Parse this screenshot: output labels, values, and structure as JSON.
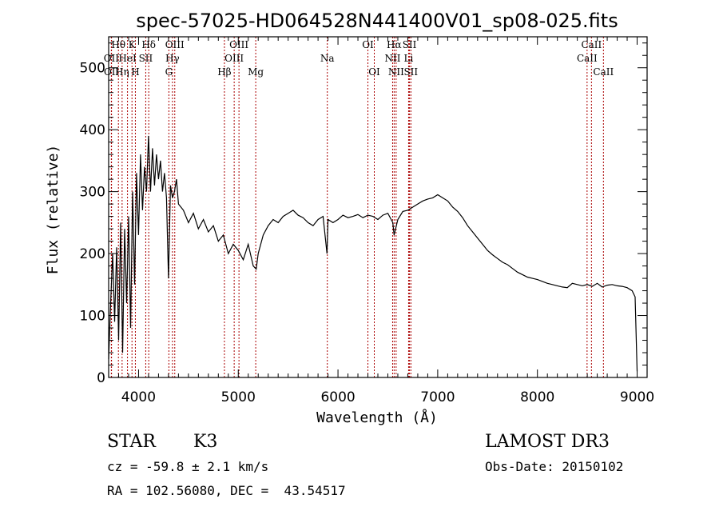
{
  "chart_data": {
    "type": "line",
    "title": "spec-57025-HD064528N441400V01_sp08-025.fits",
    "xlabel": "Wavelength (Å)",
    "ylabel": "Flux (relative)",
    "xlim": [
      3700,
      9100
    ],
    "ylim": [
      0,
      550
    ],
    "xticks": [
      "4000",
      "5000",
      "6000",
      "7000",
      "8000",
      "9000"
    ],
    "yticks": [
      "0",
      "100",
      "200",
      "300",
      "400",
      "500"
    ],
    "spectrum": {
      "x": [
        3700,
        3720,
        3740,
        3760,
        3780,
        3800,
        3820,
        3840,
        3860,
        3880,
        3900,
        3920,
        3940,
        3960,
        3980,
        4000,
        4020,
        4040,
        4060,
        4080,
        4100,
        4120,
        4140,
        4160,
        4180,
        4200,
        4220,
        4240,
        4260,
        4280,
        4300,
        4320,
        4340,
        4360,
        4380,
        4400,
        4450,
        4500,
        4550,
        4600,
        4650,
        4700,
        4750,
        4800,
        4850,
        4900,
        4950,
        5000,
        5050,
        5100,
        5150,
        5180,
        5200,
        5250,
        5300,
        5350,
        5400,
        5450,
        5500,
        5550,
        5600,
        5650,
        5700,
        5750,
        5800,
        5850,
        5890,
        5900,
        5950,
        6000,
        6050,
        6100,
        6150,
        6200,
        6250,
        6300,
        6350,
        6400,
        6450,
        6500,
        6550,
        6563,
        6600,
        6650,
        6700,
        6750,
        6800,
        6850,
        6900,
        6950,
        7000,
        7050,
        7100,
        7150,
        7200,
        7250,
        7300,
        7350,
        7400,
        7450,
        7500,
        7550,
        7600,
        7650,
        7700,
        7750,
        7800,
        7850,
        7900,
        7950,
        8000,
        8050,
        8100,
        8150,
        8200,
        8250,
        8300,
        8350,
        8400,
        8450,
        8500,
        8550,
        8600,
        8650,
        8700,
        8750,
        8800,
        8850,
        8900,
        8950,
        8980,
        9000
      ],
      "y": [
        30,
        120,
        200,
        90,
        210,
        60,
        250,
        40,
        240,
        120,
        260,
        80,
        300,
        150,
        330,
        230,
        360,
        270,
        340,
        300,
        390,
        300,
        370,
        310,
        360,
        320,
        350,
        300,
        330,
        290,
        160,
        310,
        290,
        300,
        320,
        280,
        270,
        250,
        265,
        240,
        255,
        235,
        245,
        220,
        230,
        200,
        215,
        205,
        190,
        215,
        180,
        175,
        200,
        230,
        245,
        255,
        250,
        260,
        265,
        270,
        262,
        258,
        250,
        245,
        255,
        260,
        200,
        255,
        250,
        255,
        262,
        258,
        260,
        263,
        258,
        262,
        260,
        255,
        262,
        265,
        250,
        230,
        255,
        268,
        270,
        275,
        280,
        285,
        288,
        290,
        295,
        290,
        285,
        275,
        268,
        258,
        245,
        235,
        225,
        215,
        205,
        198,
        192,
        186,
        182,
        176,
        170,
        166,
        162,
        160,
        158,
        155,
        152,
        150,
        148,
        146,
        145,
        152,
        150,
        148,
        150,
        147,
        152,
        146,
        149,
        150,
        148,
        147,
        145,
        140,
        130,
        10
      ]
    },
    "spectral_lines": [
      {
        "name": "Hθ",
        "x": 3798,
        "row": 1
      },
      {
        "name": "K",
        "x": 3934,
        "row": 1
      },
      {
        "name": "Hδ",
        "x": 4102,
        "row": 1
      },
      {
        "name": "OIII",
        "x": 4363,
        "row": 1
      },
      {
        "name": "OIII",
        "x": 5007,
        "row": 1
      },
      {
        "name": "OI",
        "x": 6300,
        "row": 1
      },
      {
        "name": "Hα",
        "x": 6563,
        "row": 1
      },
      {
        "name": "SII",
        "x": 6717,
        "row": 1
      },
      {
        "name": "CaII",
        "x": 8542,
        "row": 1
      },
      {
        "name": "OII",
        "x": 3727,
        "row": 2
      },
      {
        "name": "HeI",
        "x": 3889,
        "row": 2
      },
      {
        "name": "SII",
        "x": 4072,
        "row": 2
      },
      {
        "name": "Hγ",
        "x": 4340,
        "row": 2
      },
      {
        "name": "OIII",
        "x": 4959,
        "row": 2
      },
      {
        "name": "Na",
        "x": 5893,
        "row": 2
      },
      {
        "name": "NII",
        "x": 6548,
        "row": 2
      },
      {
        "name": "Li",
        "x": 6708,
        "row": 2
      },
      {
        "name": "CaII",
        "x": 8498,
        "row": 2
      },
      {
        "name": "OII",
        "x": 3729,
        "row": 3
      },
      {
        "name": "Hη",
        "x": 3835,
        "row": 3
      },
      {
        "name": "H",
        "x": 3968,
        "row": 3
      },
      {
        "name": "G",
        "x": 4304,
        "row": 3
      },
      {
        "name": "Hβ",
        "x": 4861,
        "row": 3
      },
      {
        "name": "Mg",
        "x": 5175,
        "row": 3
      },
      {
        "name": "OI",
        "x": 6364,
        "row": 3
      },
      {
        "name": "NII",
        "x": 6583,
        "row": 3
      },
      {
        "name": "SII",
        "x": 6731,
        "row": 3
      },
      {
        "name": "CaII",
        "x": 8662,
        "row": 3
      }
    ],
    "line_color": "#aa0000"
  },
  "info": {
    "object_type": "STAR",
    "subclass": "K3",
    "survey": "LAMOST DR3",
    "cz": "cz = -59.8 ± 2.1 km/s",
    "obs_date": "Obs-Date: 20150102",
    "coords": "RA = 102.56080, DEC =  43.54517"
  }
}
